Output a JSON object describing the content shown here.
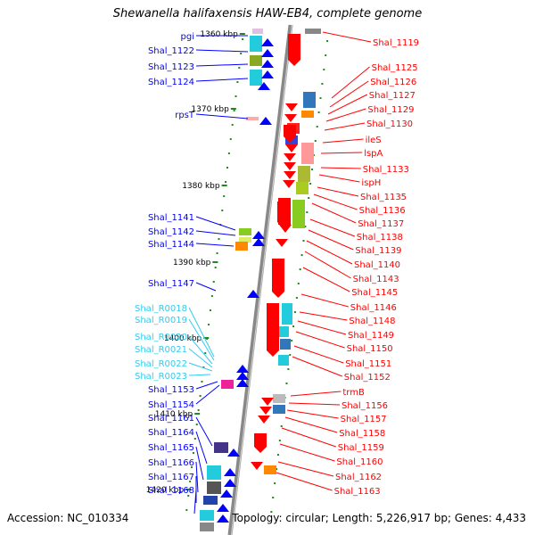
{
  "title": "Shewanella halifaxensis HAW-EB4, complete genome",
  "footer": {
    "accession": "Accession: NC_010334",
    "summary": "Topology: circular; Length: 5,226,917 bp; Genes: 4,433"
  },
  "colors": {
    "forward_strand": "#ff0000",
    "reverse_strand": "#0000ff",
    "rna_label": "#33ccee",
    "backbone": "#888888",
    "tick": "#228822"
  },
  "scale_labels": [
    "1360 kbp",
    "1370 kbp",
    "1380 kbp",
    "1390 kbp",
    "1400 kbp",
    "1410 kbp",
    "1420 kbp"
  ],
  "left_labels": [
    {
      "text": "pgi",
      "kind": "gene"
    },
    {
      "text": "Shal_1122",
      "kind": "gene"
    },
    {
      "text": "Shal_1123",
      "kind": "gene"
    },
    {
      "text": "Shal_1124",
      "kind": "gene"
    },
    {
      "text": "rpsT",
      "kind": "gene"
    },
    {
      "text": "Shal_1141",
      "kind": "gene"
    },
    {
      "text": "Shal_1142",
      "kind": "gene"
    },
    {
      "text": "Shal_1144",
      "kind": "gene"
    },
    {
      "text": "Shal_1147",
      "kind": "gene"
    },
    {
      "text": "Shal_R0018",
      "kind": "rna"
    },
    {
      "text": "Shal_R0019",
      "kind": "rna"
    },
    {
      "text": "Shal_R0020",
      "kind": "rna"
    },
    {
      "text": "Shal_R0021",
      "kind": "rna"
    },
    {
      "text": "Shal_R0022",
      "kind": "rna"
    },
    {
      "text": "Shal_R0023",
      "kind": "rna"
    },
    {
      "text": "Shal_1153",
      "kind": "gene"
    },
    {
      "text": "Shal_1154",
      "kind": "gene"
    },
    {
      "text": "Shal_1161",
      "kind": "gene"
    },
    {
      "text": "Shal_1164",
      "kind": "gene"
    },
    {
      "text": "Shal_1165",
      "kind": "gene"
    },
    {
      "text": "Shal_1166",
      "kind": "gene"
    },
    {
      "text": "Shal_1167",
      "kind": "gene"
    },
    {
      "text": "Shal_1168",
      "kind": "gene"
    }
  ],
  "right_labels": [
    "Shal_1119",
    "Shal_1125",
    "Shal_1126",
    "Shal_1127",
    "Shal_1129",
    "Shal_1130",
    "ileS",
    "lspA",
    "Shal_1133",
    "ispH",
    "Shal_1135",
    "Shal_1136",
    "Shal_1137",
    "Shal_1138",
    "Shal_1139",
    "Shal_1140",
    "Shal_1143",
    "Shal_1145",
    "Shal_1146",
    "Shal_1148",
    "Shal_1149",
    "Shal_1150",
    "Shal_1151",
    "Shal_1152",
    "trmB",
    "Shal_1156",
    "Shal_1157",
    "Shal_1158",
    "Shal_1159",
    "Shal_1160",
    "Shal_1162",
    "Shal_1163"
  ]
}
